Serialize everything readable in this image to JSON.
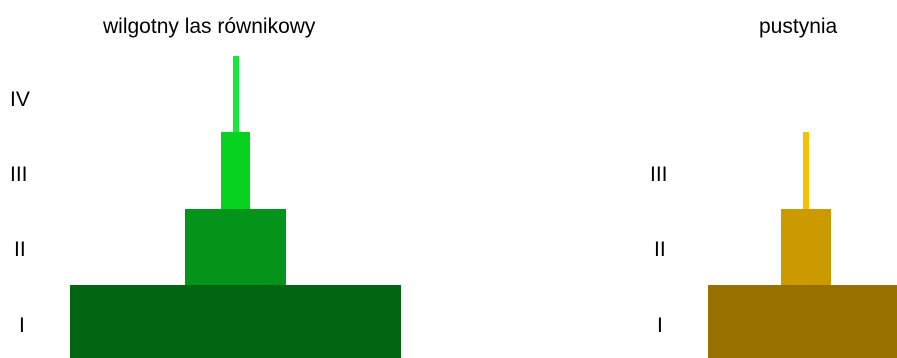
{
  "pyramids": [
    {
      "title": "wilgotny las równikowy",
      "levels": [
        {
          "label": "I",
          "color": "#006612"
        },
        {
          "label": "II",
          "color": "#049419"
        },
        {
          "label": "III",
          "color": "#06d21f"
        },
        {
          "label": "IV",
          "color": "#14e83a"
        }
      ]
    },
    {
      "title": "pustynia",
      "levels": [
        {
          "label": "I",
          "color": "#987200"
        },
        {
          "label": "II",
          "color": "#cb9a00"
        },
        {
          "label": "III",
          "color": "#f9bf00"
        }
      ]
    }
  ]
}
